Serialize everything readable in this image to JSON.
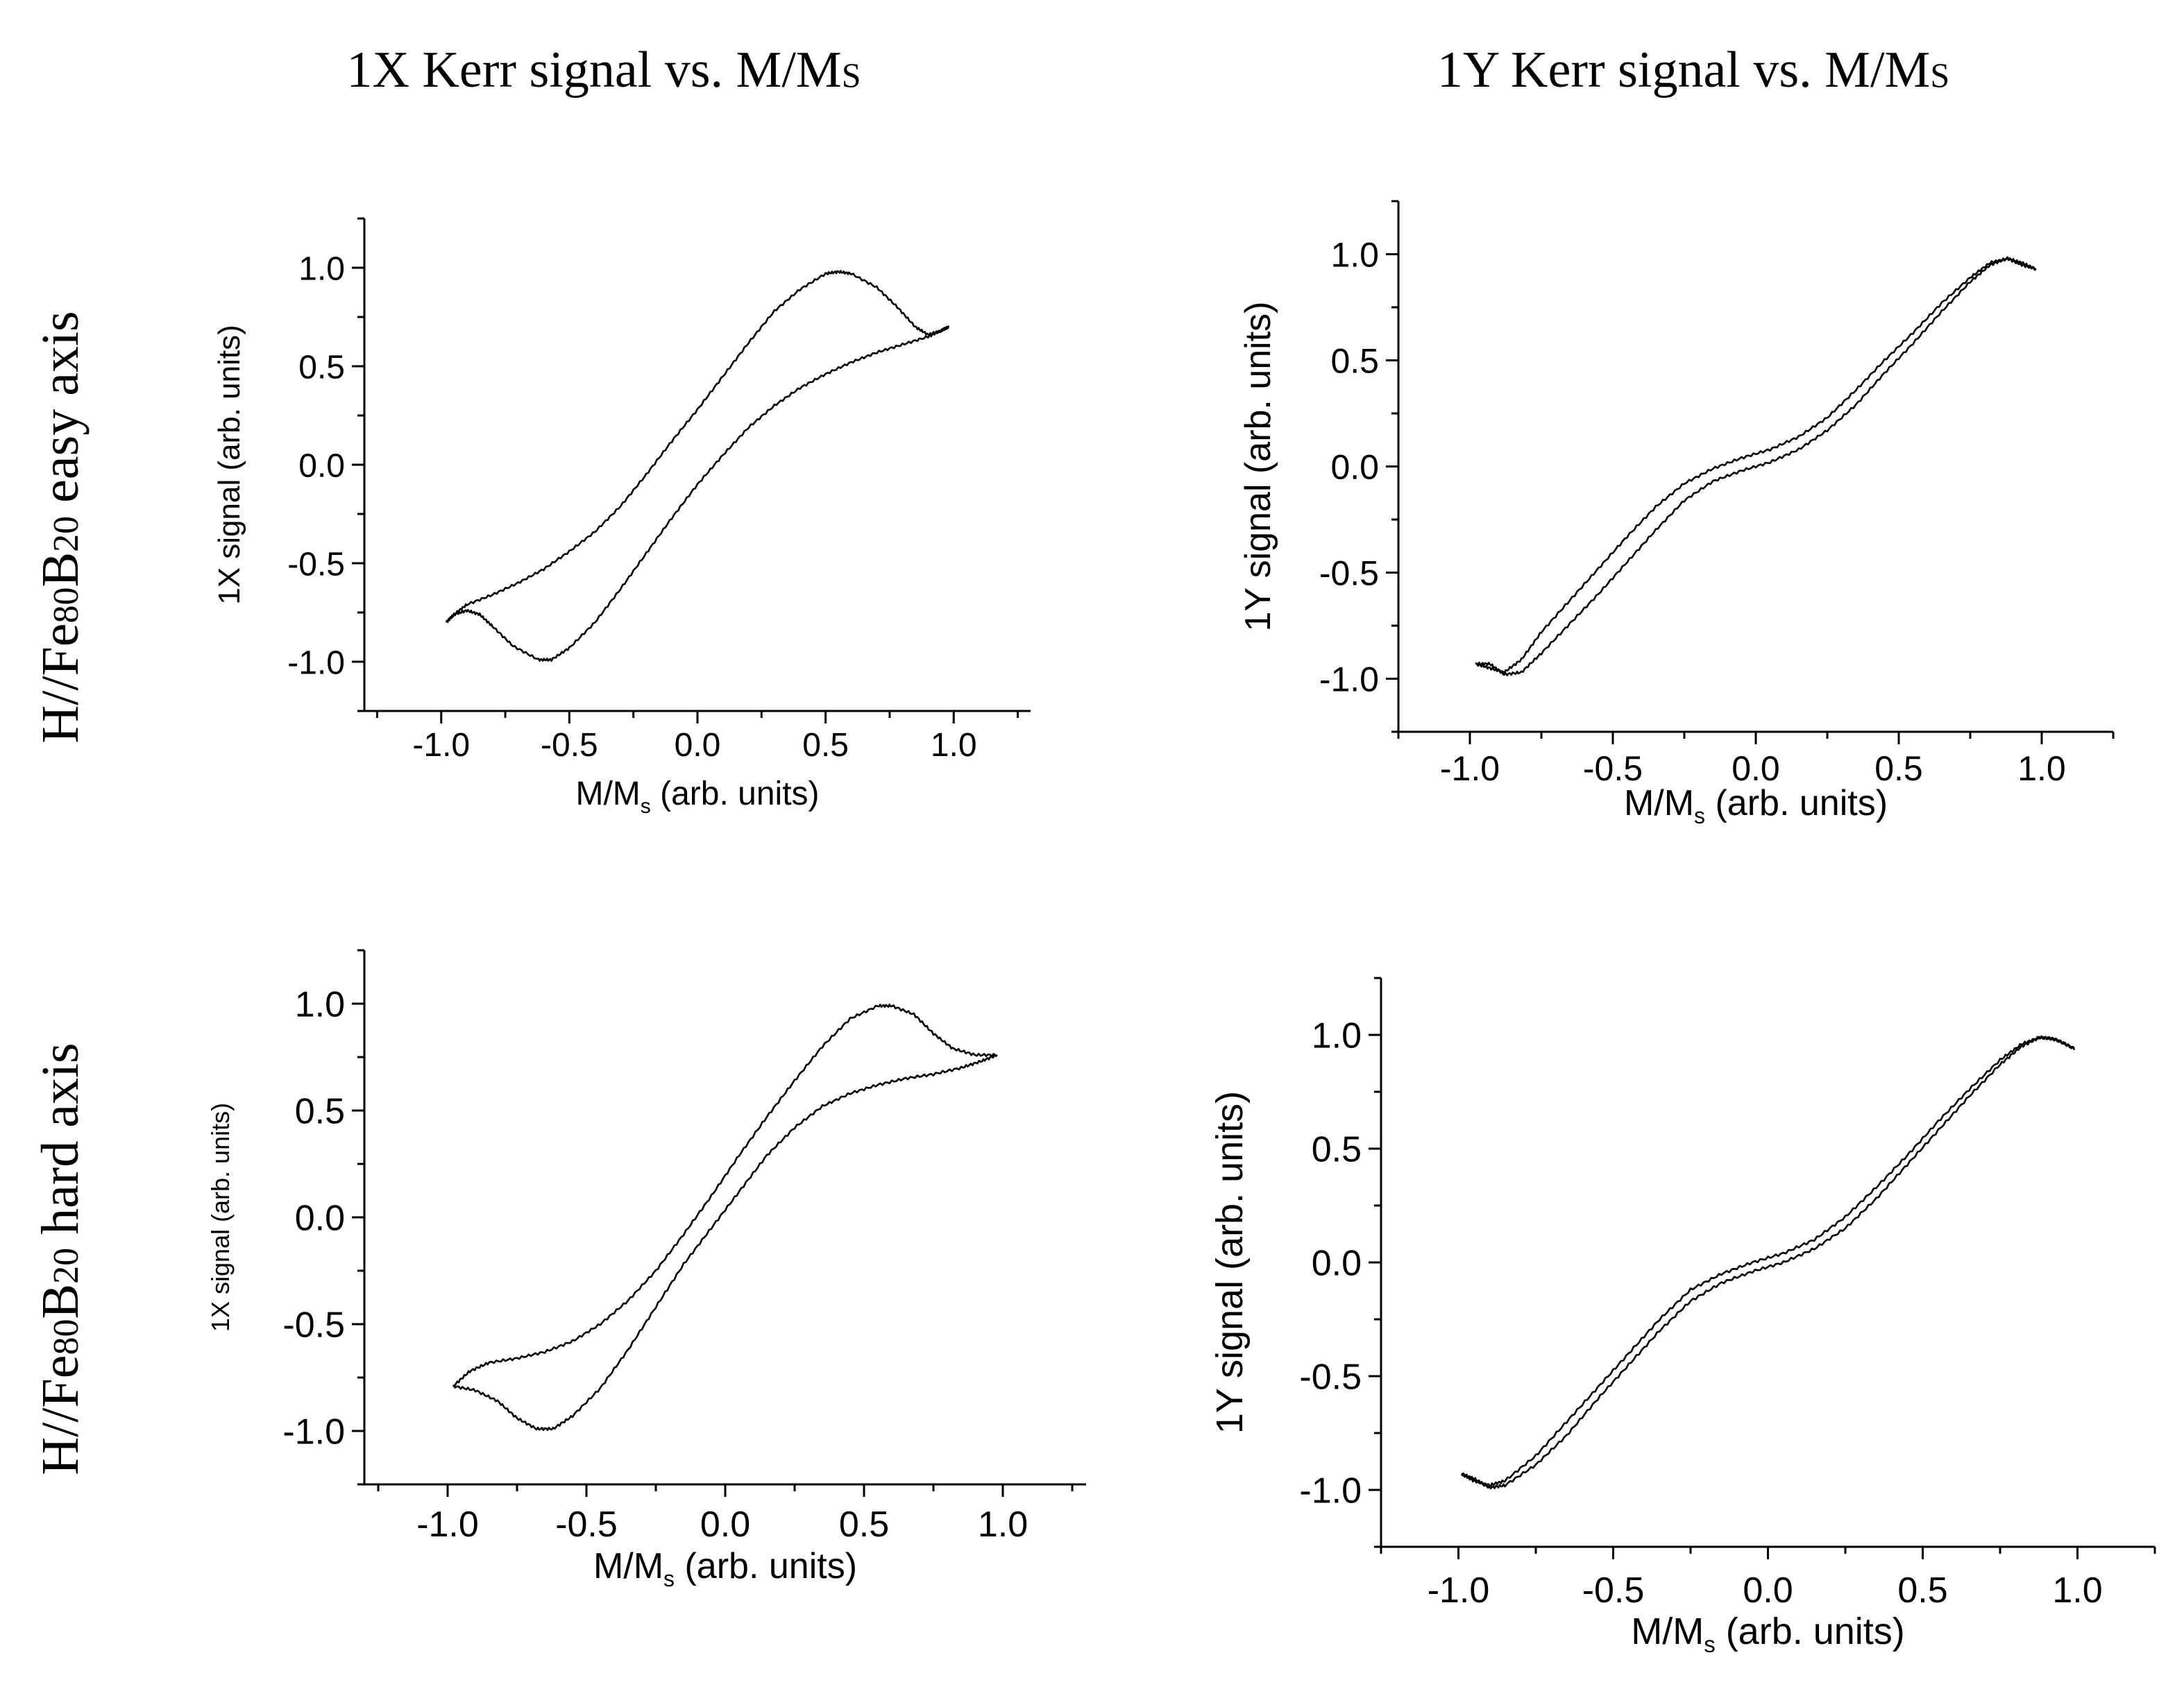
{
  "column_titles": [
    {
      "main": "1X Kerr signal vs. M/M",
      "sub": "S"
    },
    {
      "main": "1Y Kerr signal vs. M/M",
      "sub": "S"
    }
  ],
  "row_labels": [
    {
      "prefix": "H//Fe",
      "sub1": "80",
      "mid": "B",
      "sub2": "20",
      "suffix": " easy axis"
    },
    {
      "prefix": "H//Fe",
      "sub1": "80",
      "mid": "B",
      "sub2": "20",
      "suffix": " hard axis"
    }
  ],
  "chart_data": [
    {
      "type": "line",
      "panel": "top-left",
      "title": "",
      "xlabel": {
        "main": "M/M",
        "sub": "s",
        "rest": " (arb. units)"
      },
      "ylabel": "1X signal (arb. units)",
      "xlim": [
        -1.3,
        1.3
      ],
      "ylim": [
        -1.25,
        1.25
      ],
      "xticks": [
        -1.0,
        -0.5,
        0.0,
        0.5,
        1.0
      ],
      "xtick_labels": [
        "-1.0",
        "-0.5",
        "0.0",
        "0.5",
        "1.0"
      ],
      "yticks": [
        -1.0,
        -0.5,
        0.0,
        0.5,
        1.0
      ],
      "ytick_labels": [
        "-1.0",
        "-0.5",
        "0.0",
        "0.5",
        "1.0"
      ],
      "series": [
        {
          "name": "ascending branch",
          "points": [
            [
              -0.98,
              -0.8
            ],
            [
              -0.95,
              -0.76
            ],
            [
              -0.9,
              -0.74
            ],
            [
              -0.85,
              -0.76
            ],
            [
              -0.8,
              -0.82
            ],
            [
              -0.72,
              -0.92
            ],
            [
              -0.62,
              -0.99
            ],
            [
              -0.57,
              -0.99
            ],
            [
              -0.5,
              -0.93
            ],
            [
              -0.4,
              -0.8
            ],
            [
              -0.3,
              -0.63
            ],
            [
              -0.2,
              -0.45
            ],
            [
              -0.1,
              -0.27
            ],
            [
              0.0,
              -0.1
            ],
            [
              0.1,
              0.05
            ],
            [
              0.2,
              0.19
            ],
            [
              0.3,
              0.3
            ],
            [
              0.4,
              0.39
            ],
            [
              0.5,
              0.46
            ],
            [
              0.6,
              0.52
            ],
            [
              0.7,
              0.57
            ],
            [
              0.8,
              0.61
            ],
            [
              0.9,
              0.65
            ],
            [
              0.95,
              0.68
            ],
            [
              0.98,
              0.7
            ]
          ]
        },
        {
          "name": "descending branch",
          "points": [
            [
              0.98,
              0.7
            ],
            [
              0.95,
              0.68
            ],
            [
              0.9,
              0.66
            ],
            [
              0.85,
              0.7
            ],
            [
              0.78,
              0.8
            ],
            [
              0.7,
              0.9
            ],
            [
              0.6,
              0.97
            ],
            [
              0.55,
              0.98
            ],
            [
              0.5,
              0.97
            ],
            [
              0.4,
              0.89
            ],
            [
              0.3,
              0.78
            ],
            [
              0.2,
              0.62
            ],
            [
              0.1,
              0.45
            ],
            [
              0.0,
              0.28
            ],
            [
              -0.1,
              0.12
            ],
            [
              -0.2,
              -0.05
            ],
            [
              -0.3,
              -0.21
            ],
            [
              -0.4,
              -0.34
            ],
            [
              -0.5,
              -0.44
            ],
            [
              -0.6,
              -0.53
            ],
            [
              -0.7,
              -0.6
            ],
            [
              -0.8,
              -0.66
            ],
            [
              -0.9,
              -0.71
            ],
            [
              -0.95,
              -0.76
            ],
            [
              -0.98,
              -0.8
            ]
          ]
        }
      ]
    },
    {
      "type": "line",
      "panel": "top-right",
      "title": "",
      "xlabel": {
        "main": "M/M",
        "sub": "s",
        "rest": " (arb. units)"
      },
      "ylabel": "1Y signal (arb. units)",
      "xlim": [
        -1.25,
        1.25
      ],
      "ylim": [
        -1.25,
        1.25
      ],
      "xticks": [
        -1.0,
        -0.5,
        0.0,
        0.5,
        1.0
      ],
      "xtick_labels": [
        "-1.0",
        "-0.5",
        "0.0",
        "0.5",
        "1.0"
      ],
      "yticks": [
        -1.0,
        -0.5,
        0.0,
        0.5,
        1.0
      ],
      "ytick_labels": [
        "-1.0",
        "-0.5",
        "0.0",
        "0.5",
        "1.0"
      ],
      "series": [
        {
          "name": "ascending branch",
          "points": [
            [
              -0.98,
              -0.93
            ],
            [
              -0.93,
              -0.93
            ],
            [
              -0.88,
              -0.98
            ],
            [
              -0.82,
              -0.97
            ],
            [
              -0.75,
              -0.88
            ],
            [
              -0.65,
              -0.74
            ],
            [
              -0.55,
              -0.6
            ],
            [
              -0.45,
              -0.45
            ],
            [
              -0.35,
              -0.3
            ],
            [
              -0.25,
              -0.16
            ],
            [
              -0.15,
              -0.07
            ],
            [
              -0.05,
              -0.02
            ],
            [
              0.05,
              0.02
            ],
            [
              0.15,
              0.08
            ],
            [
              0.25,
              0.17
            ],
            [
              0.35,
              0.29
            ],
            [
              0.45,
              0.44
            ],
            [
              0.55,
              0.58
            ],
            [
              0.65,
              0.73
            ],
            [
              0.75,
              0.87
            ],
            [
              0.82,
              0.95
            ],
            [
              0.88,
              0.98
            ],
            [
              0.93,
              0.96
            ],
            [
              0.98,
              0.93
            ]
          ]
        },
        {
          "name": "descending branch",
          "points": [
            [
              0.98,
              0.93
            ],
            [
              0.93,
              0.95
            ],
            [
              0.88,
              0.98
            ],
            [
              0.82,
              0.96
            ],
            [
              0.75,
              0.89
            ],
            [
              0.65,
              0.77
            ],
            [
              0.55,
              0.63
            ],
            [
              0.45,
              0.5
            ],
            [
              0.35,
              0.36
            ],
            [
              0.25,
              0.23
            ],
            [
              0.15,
              0.14
            ],
            [
              0.05,
              0.08
            ],
            [
              -0.05,
              0.04
            ],
            [
              -0.15,
              -0.01
            ],
            [
              -0.25,
              -0.08
            ],
            [
              -0.35,
              -0.19
            ],
            [
              -0.45,
              -0.33
            ],
            [
              -0.55,
              -0.48
            ],
            [
              -0.65,
              -0.63
            ],
            [
              -0.75,
              -0.78
            ],
            [
              -0.82,
              -0.91
            ],
            [
              -0.88,
              -0.97
            ],
            [
              -0.93,
              -0.95
            ],
            [
              -0.98,
              -0.93
            ]
          ]
        }
      ]
    },
    {
      "type": "line",
      "panel": "bottom-left",
      "title": "",
      "xlabel": {
        "main": "M/M",
        "sub": "s",
        "rest": " (arb. units)"
      },
      "ylabel": "1X signal (arb. units)",
      "xlim": [
        -1.3,
        1.3
      ],
      "ylim": [
        -1.25,
        1.25
      ],
      "xticks": [
        -1.0,
        -0.5,
        0.0,
        0.5,
        1.0
      ],
      "xtick_labels": [
        "-1.0",
        "-0.5",
        "0.0",
        "0.5",
        "1.0"
      ],
      "yticks": [
        -1.0,
        -0.5,
        0.0,
        0.5,
        1.0
      ],
      "ytick_labels": [
        "-1.0",
        "-0.5",
        "0.0",
        "0.5",
        "1.0"
      ],
      "series": [
        {
          "name": "ascending branch",
          "points": [
            [
              -0.98,
              -0.79
            ],
            [
              -0.9,
              -0.81
            ],
            [
              -0.82,
              -0.86
            ],
            [
              -0.75,
              -0.94
            ],
            [
              -0.68,
              -0.99
            ],
            [
              -0.62,
              -0.99
            ],
            [
              -0.55,
              -0.93
            ],
            [
              -0.45,
              -0.8
            ],
            [
              -0.35,
              -0.62
            ],
            [
              -0.25,
              -0.42
            ],
            [
              -0.15,
              -0.22
            ],
            [
              -0.05,
              -0.05
            ],
            [
              0.05,
              0.12
            ],
            [
              0.15,
              0.29
            ],
            [
              0.25,
              0.42
            ],
            [
              0.35,
              0.52
            ],
            [
              0.45,
              0.58
            ],
            [
              0.55,
              0.62
            ],
            [
              0.65,
              0.65
            ],
            [
              0.75,
              0.67
            ],
            [
              0.85,
              0.7
            ],
            [
              0.92,
              0.73
            ],
            [
              0.98,
              0.76
            ]
          ]
        },
        {
          "name": "descending branch",
          "points": [
            [
              0.98,
              0.76
            ],
            [
              0.9,
              0.76
            ],
            [
              0.82,
              0.79
            ],
            [
              0.75,
              0.86
            ],
            [
              0.68,
              0.95
            ],
            [
              0.6,
              0.99
            ],
            [
              0.55,
              0.99
            ],
            [
              0.45,
              0.93
            ],
            [
              0.35,
              0.8
            ],
            [
              0.25,
              0.64
            ],
            [
              0.15,
              0.47
            ],
            [
              0.05,
              0.29
            ],
            [
              -0.05,
              0.1
            ],
            [
              -0.15,
              -0.08
            ],
            [
              -0.25,
              -0.25
            ],
            [
              -0.35,
              -0.39
            ],
            [
              -0.45,
              -0.5
            ],
            [
              -0.55,
              -0.58
            ],
            [
              -0.65,
              -0.63
            ],
            [
              -0.75,
              -0.66
            ],
            [
              -0.85,
              -0.68
            ],
            [
              -0.92,
              -0.72
            ],
            [
              -0.98,
              -0.79
            ]
          ]
        }
      ]
    },
    {
      "type": "line",
      "panel": "bottom-right",
      "title": "",
      "xlabel": {
        "main": "M/M",
        "sub": "s",
        "rest": " (arb. units)"
      },
      "ylabel": "1Y signal (arb. units)",
      "xlim": [
        -1.25,
        1.25
      ],
      "ylim": [
        -1.25,
        1.25
      ],
      "xticks": [
        -1.0,
        -0.5,
        0.0,
        0.5,
        1.0
      ],
      "xtick_labels": [
        "-1.0",
        "-0.5",
        "0.0",
        "0.5",
        "1.0"
      ],
      "yticks": [
        -1.0,
        -0.5,
        0.0,
        0.5,
        1.0
      ],
      "ytick_labels": [
        "-1.0",
        "-0.5",
        "0.0",
        "0.5",
        "1.0"
      ],
      "series": [
        {
          "name": "ascending branch",
          "points": [
            [
              -0.99,
              -0.93
            ],
            [
              -0.95,
              -0.95
            ],
            [
              -0.9,
              -0.99
            ],
            [
              -0.85,
              -0.98
            ],
            [
              -0.75,
              -0.89
            ],
            [
              -0.65,
              -0.76
            ],
            [
              -0.55,
              -0.6
            ],
            [
              -0.45,
              -0.45
            ],
            [
              -0.35,
              -0.3
            ],
            [
              -0.25,
              -0.17
            ],
            [
              -0.15,
              -0.09
            ],
            [
              -0.05,
              -0.04
            ],
            [
              0.05,
              0.0
            ],
            [
              0.15,
              0.06
            ],
            [
              0.25,
              0.15
            ],
            [
              0.35,
              0.28
            ],
            [
              0.45,
              0.43
            ],
            [
              0.55,
              0.58
            ],
            [
              0.65,
              0.73
            ],
            [
              0.75,
              0.87
            ],
            [
              0.82,
              0.95
            ],
            [
              0.88,
              0.99
            ],
            [
              0.93,
              0.98
            ],
            [
              0.99,
              0.94
            ]
          ]
        },
        {
          "name": "descending branch",
          "points": [
            [
              0.99,
              0.94
            ],
            [
              0.93,
              0.98
            ],
            [
              0.88,
              0.99
            ],
            [
              0.82,
              0.96
            ],
            [
              0.75,
              0.89
            ],
            [
              0.65,
              0.76
            ],
            [
              0.55,
              0.62
            ],
            [
              0.45,
              0.47
            ],
            [
              0.35,
              0.33
            ],
            [
              0.25,
              0.2
            ],
            [
              0.15,
              0.1
            ],
            [
              0.05,
              0.04
            ],
            [
              -0.05,
              0.0
            ],
            [
              -0.15,
              -0.05
            ],
            [
              -0.25,
              -0.12
            ],
            [
              -0.35,
              -0.25
            ],
            [
              -0.45,
              -0.4
            ],
            [
              -0.55,
              -0.55
            ],
            [
              -0.65,
              -0.7
            ],
            [
              -0.75,
              -0.85
            ],
            [
              -0.85,
              -0.96
            ],
            [
              -0.9,
              -0.98
            ],
            [
              -0.95,
              -0.96
            ],
            [
              -0.99,
              -0.93
            ]
          ]
        }
      ]
    }
  ]
}
